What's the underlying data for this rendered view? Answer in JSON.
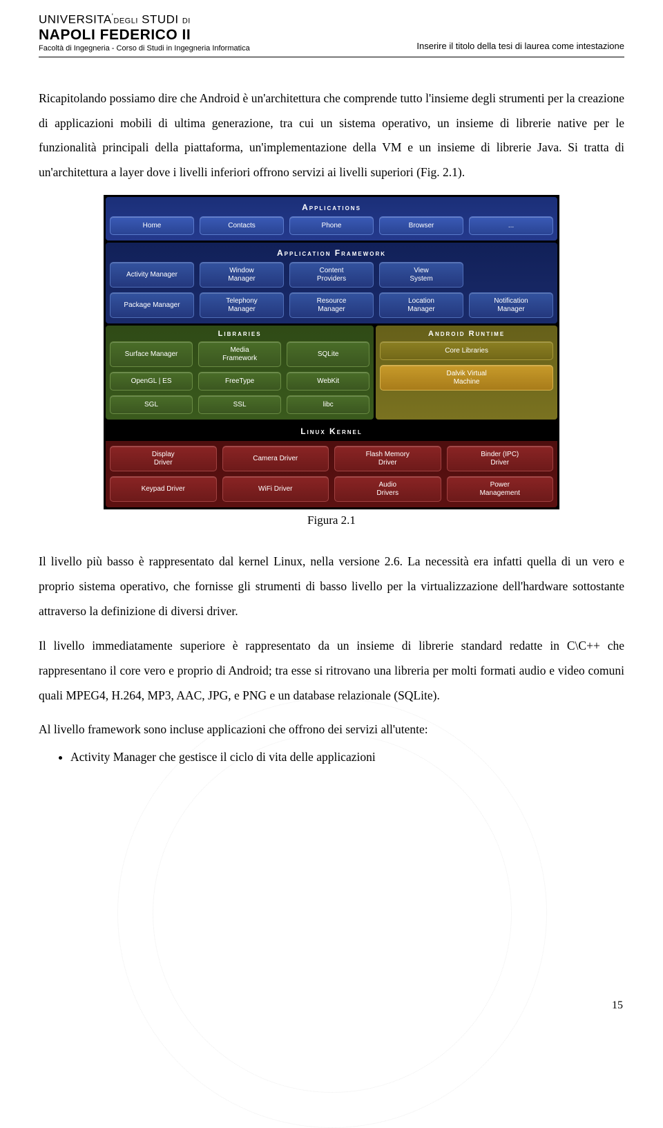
{
  "header": {
    "uni_line1_a": "UNIVERSITA",
    "uni_line1_b": "DEGLI",
    "uni_line1_c": "STUDI",
    "uni_line1_d": "DI",
    "uni_line2": "NAPOLI FEDERICO II",
    "faculty": "Facoltà di Ingegneria - Corso di Studi in Ingegneria Informatica",
    "right": "Inserire il titolo della tesi di laurea come intestazione"
  },
  "para1": "Ricapitolando possiamo dire che Android è un'architettura che comprende tutto l'insieme degli strumenti per la creazione di applicazioni mobili di ultima generazione, tra cui un sistema operativo, un insieme di librerie native per le funzionalità principali della piattaforma, un'implementazione della VM e un insieme di librerie Java. Si tratta di un'architettura a layer dove i livelli inferiori offrono servizi ai livelli superiori (Fig. 2.1).",
  "caption": "Figura 2.1",
  "para2": "Il livello più basso è rappresentato dal kernel Linux, nella versione 2.6. La necessità era infatti quella di un vero e proprio sistema operativo, che fornisse gli strumenti di basso livello per la virtualizzazione dell'hardware sottostante attraverso la definizione di diversi driver.",
  "para3": "Il livello immediatamente superiore è rappresentato da un insieme di librerie standard redatte in C\\C++ che rappresentano il core vero e proprio di Android; tra esse si ritrovano una libreria per molti formati audio e video comuni quali MPEG4, H.264, MP3, AAC, JPG, e PNG e un database relazionale (SQLite).",
  "para4": "Al livello framework sono incluse applicazioni che offrono dei servizi all'utente:",
  "bullet1": "Activity Manager che gestisce il ciclo di vita delle applicazioni",
  "pagenum": "15",
  "diagram": {
    "apps_title": "Applications",
    "apps": [
      "Home",
      "Contacts",
      "Phone",
      "Browser",
      "..."
    ],
    "afw_title": "Application Framework",
    "afw_r1": [
      "Activity Manager",
      "Window\nManager",
      "Content\nProviders",
      "View\nSystem"
    ],
    "afw_r2": [
      "Package Manager",
      "Telephony\nManager",
      "Resource\nManager",
      "Location\nManager",
      "Notification\nManager"
    ],
    "libs_title": "Libraries",
    "libs_r1": [
      "Surface Manager",
      "Media\nFramework",
      "SQLite"
    ],
    "libs_r2": [
      "OpenGL | ES",
      "FreeType",
      "WebKit"
    ],
    "libs_r3": [
      "SGL",
      "SSL",
      "libc"
    ],
    "art_title": "Android Runtime",
    "art_r1": "Core Libraries",
    "art_r2": "Dalvik Virtual\nMachine",
    "kernel_title": "Linux Kernel",
    "kernel_r1": [
      "Display\nDriver",
      "Camera Driver",
      "Flash Memory\nDriver",
      "Binder (IPC)\nDriver"
    ],
    "kernel_r2": [
      "Keypad Driver",
      "WiFi Driver",
      "Audio\nDrivers",
      "Power\nManagement"
    ]
  }
}
